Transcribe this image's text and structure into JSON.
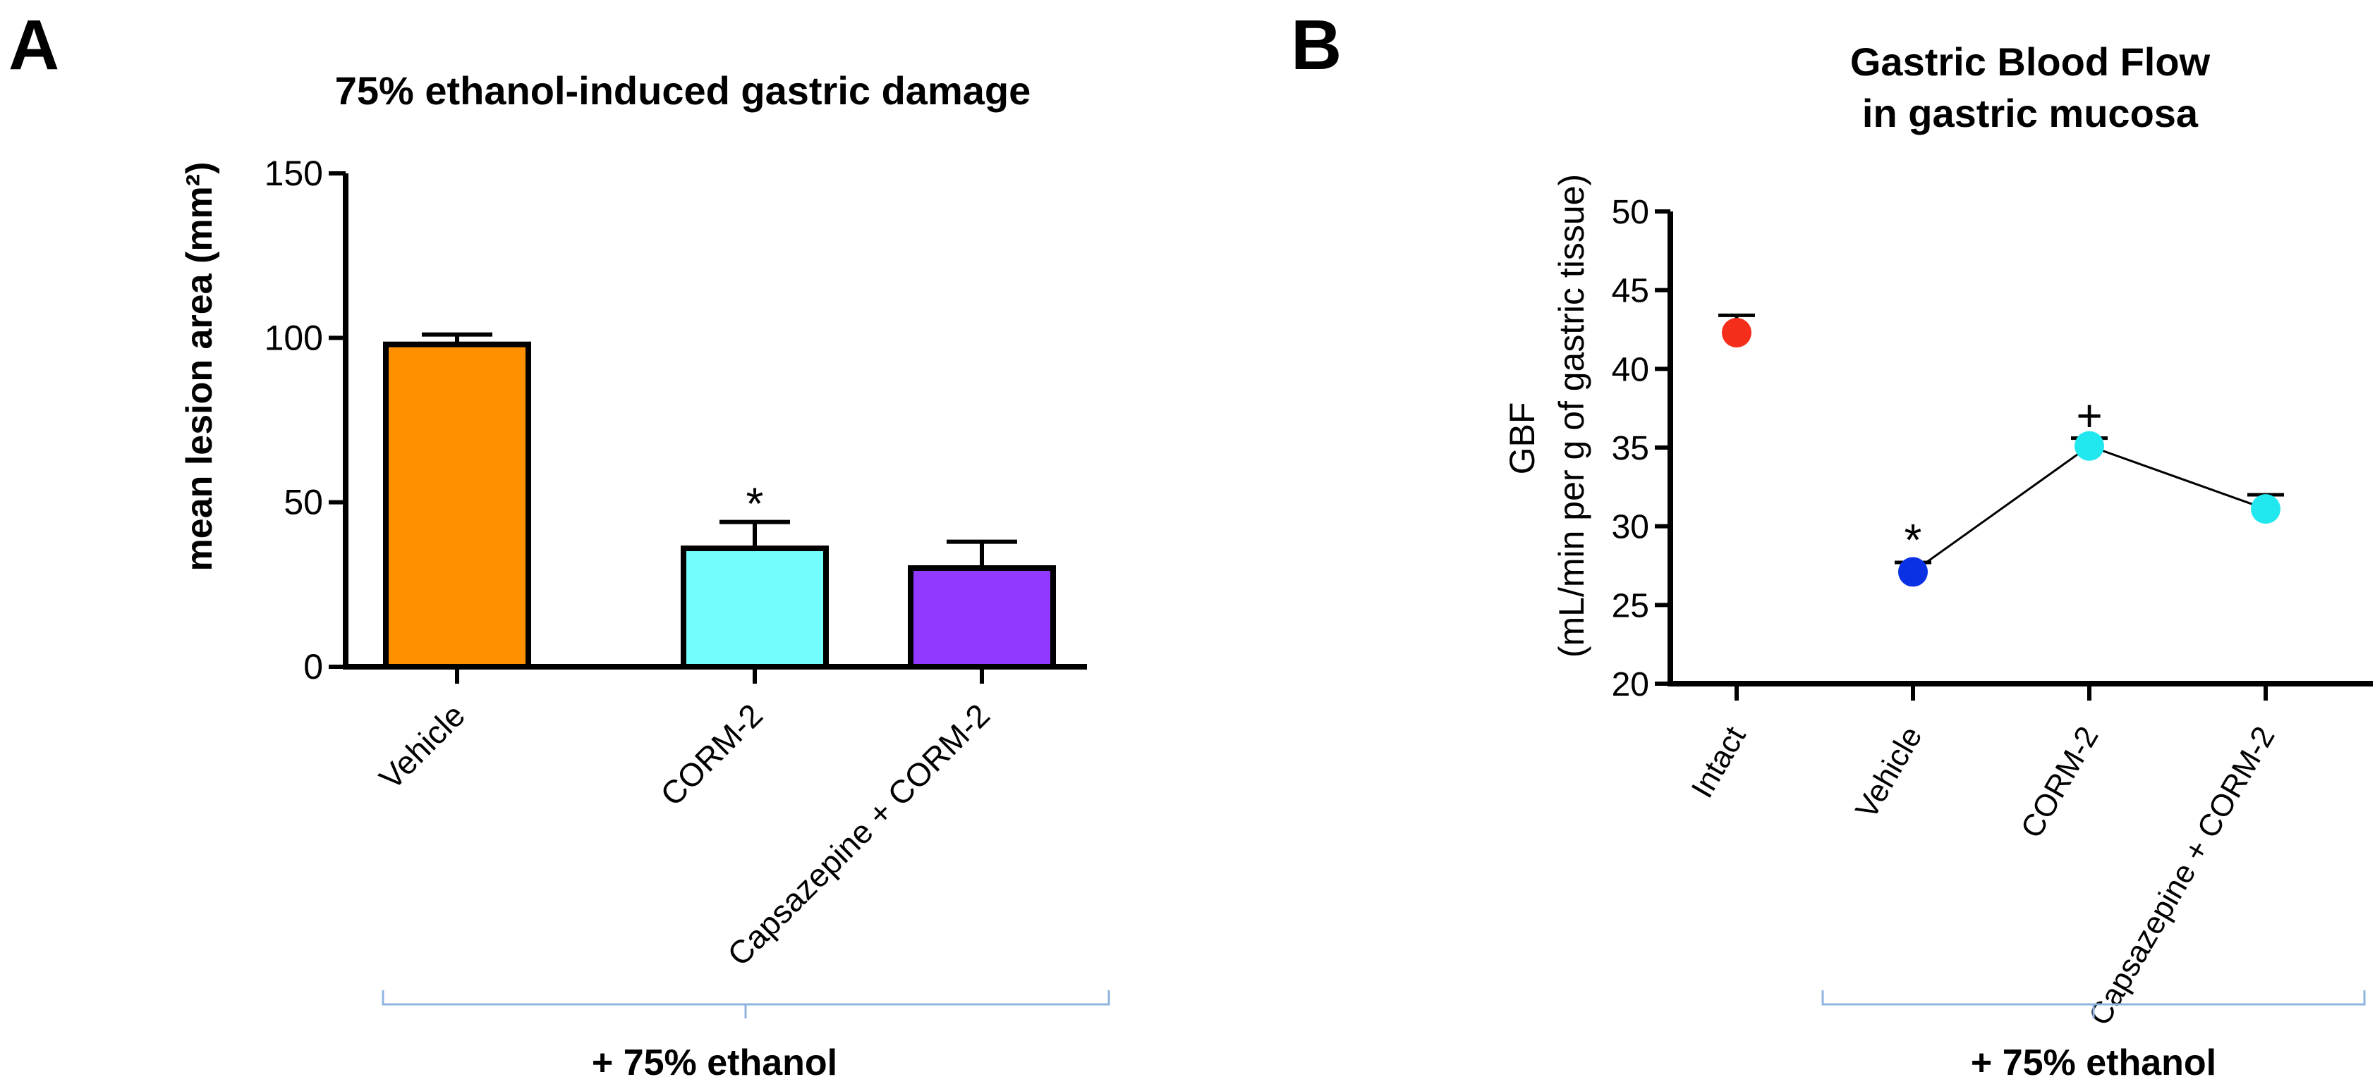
{
  "chart_data": [
    {
      "panel_label": "A",
      "type": "bar",
      "title": "75% ethanol-induced gastric damage",
      "ylabel": "mean lesion area (mm²)",
      "ylim": [
        0,
        150
      ],
      "yticks": [
        "0",
        "50",
        "100",
        "150"
      ],
      "categories": [
        "Vehicle",
        "CORM-2",
        "Capsazepine + CORM-2"
      ],
      "values": [
        98,
        36,
        30
      ],
      "errors": [
        3,
        8,
        8
      ],
      "bar_colors": [
        "#ff9000",
        "#73fdfc",
        "#9139fe"
      ],
      "annotations": [
        {
          "category": "CORM-2",
          "text": "*"
        }
      ],
      "group_bracket": "+ 75% ethanol"
    },
    {
      "panel_label": "B",
      "type": "scatter",
      "title": [
        "Gastric Blood Flow",
        "in gastric mucosa"
      ],
      "ylabel": [
        "GBF",
        "(mL/min per g of gastric tissue)"
      ],
      "ylim": [
        20,
        50
      ],
      "yticks": [
        "20",
        "25",
        "30",
        "35",
        "40",
        "45",
        "50"
      ],
      "categories": [
        "Intact",
        "Vehicle",
        "CORM-2",
        "Capsazepine + CORM-2"
      ],
      "values": [
        42.3,
        27.1,
        35.1,
        31.1
      ],
      "errors": [
        1.1,
        0.6,
        0.5,
        0.9
      ],
      "marker_colors": [
        "#f42e1a",
        "#0a32e4",
        "#20e8ee",
        "#20e8ee"
      ],
      "connected": [
        "Vehicle",
        "CORM-2",
        "Capsazepine + CORM-2"
      ],
      "annotations": [
        {
          "category": "Vehicle",
          "text": "*"
        },
        {
          "category": "CORM-2",
          "text": "+"
        }
      ],
      "group_bracket": "+ 75% ethanol"
    }
  ]
}
